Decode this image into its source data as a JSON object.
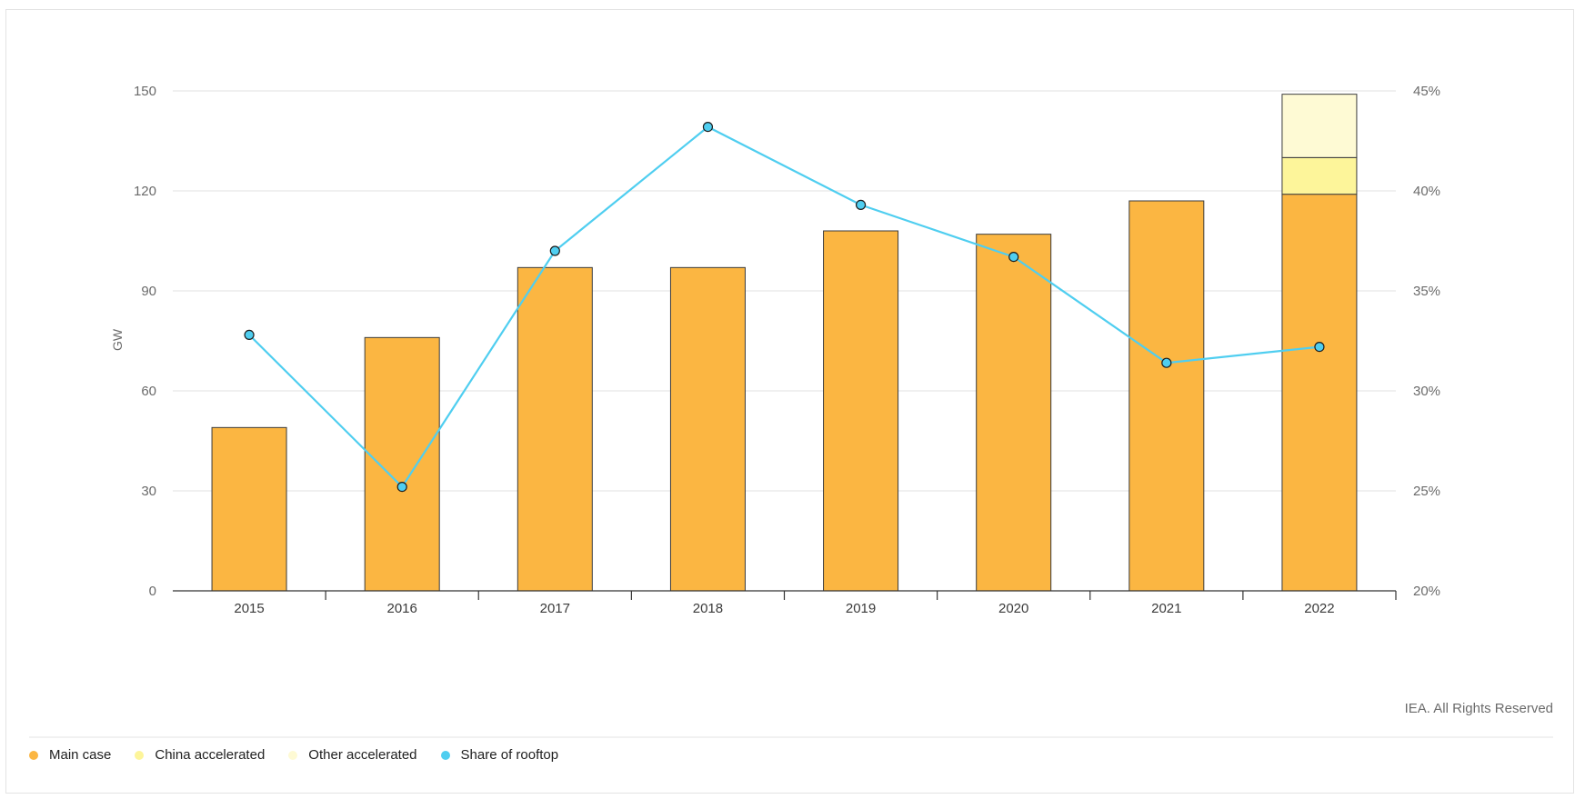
{
  "chart_data": {
    "type": "bar",
    "stacked": true,
    "categories": [
      "2015",
      "2016",
      "2017",
      "2018",
      "2019",
      "2020",
      "2021",
      "2022"
    ],
    "series": [
      {
        "name": "Main case",
        "axis": "left",
        "color": "#fbb642",
        "values": [
          49,
          76,
          97,
          97,
          108,
          107,
          117,
          119
        ]
      },
      {
        "name": "China accelerated",
        "axis": "left",
        "color": "#fdf59a",
        "values": [
          0,
          0,
          0,
          0,
          0,
          0,
          0,
          11
        ]
      },
      {
        "name": "Other accelerated",
        "axis": "left",
        "color": "#fefad4",
        "values": [
          0,
          0,
          0,
          0,
          0,
          0,
          0,
          19
        ]
      },
      {
        "name": "Share of rooftop",
        "type": "line",
        "axis": "right",
        "color": "#4fcef0",
        "values": [
          32.8,
          25.2,
          37.0,
          43.2,
          39.3,
          36.7,
          31.4,
          32.2
        ]
      }
    ],
    "ylabel": "GW",
    "ylim": [
      0,
      150
    ],
    "yticks": [
      0,
      30,
      60,
      90,
      120,
      150
    ],
    "y2lim": [
      20,
      45
    ],
    "y2ticks": [
      "20%",
      "25%",
      "30%",
      "35%",
      "40%",
      "45%"
    ],
    "grid": true,
    "legend_position": "bottom-left"
  },
  "credit": "IEA. All Rights Reserved",
  "colors": {
    "grid": "#e0e0e0",
    "axis": "#333333",
    "bar_stroke": "#3b3b3b",
    "divider": "#e3e3e3"
  }
}
